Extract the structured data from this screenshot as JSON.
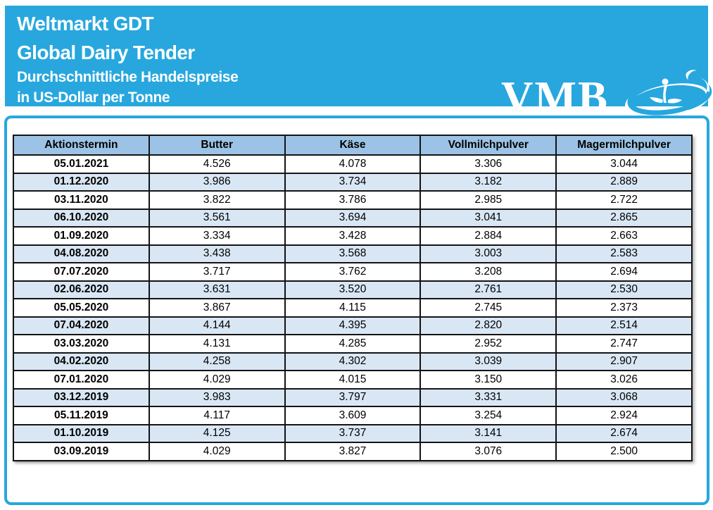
{
  "banner": {
    "background": "#27A7DE",
    "title1": "Weltmarkt GDT",
    "title2": "Global Dairy Tender",
    "subtitle1": "Durchschnittliche Handelspreise",
    "subtitle2": "in US-Dollar per Tonne",
    "logo_text": "VMB"
  },
  "chart_data": {
    "type": "table",
    "title": "Weltmarkt GDT Global Dairy Tender Durchschnittliche Handelspreise in US-Dollar per Tonne",
    "columns": [
      "Aktionstermin",
      "Butter",
      "Käse",
      "Vollmilchpulver",
      "Magermilchpulver"
    ],
    "rows": [
      [
        "05.01.2021",
        "4.526",
        "4.078",
        "3.306",
        "3.044"
      ],
      [
        "01.12.2020",
        "3.986",
        "3.734",
        "3.182",
        "2.889"
      ],
      [
        "03.11.2020",
        "3.822",
        "3.786",
        "2.985",
        "2.722"
      ],
      [
        "06.10.2020",
        "3.561",
        "3.694",
        "3.041",
        "2.865"
      ],
      [
        "01.09.2020",
        "3.334",
        "3.428",
        "2.884",
        "2.663"
      ],
      [
        "04.08.2020",
        "3.438",
        "3.568",
        "3.003",
        "2.583"
      ],
      [
        "07.07.2020",
        "3.717",
        "3.762",
        "3.208",
        "2.694"
      ],
      [
        "02.06.2020",
        "3.631",
        "3.520",
        "2.761",
        "2.530"
      ],
      [
        "05.05.2020",
        "3.867",
        "4.115",
        "2.745",
        "2.373"
      ],
      [
        "07.04.2020",
        "4.144",
        "4.395",
        "2.820",
        "2.514"
      ],
      [
        "03.03.2020",
        "4.131",
        "4.285",
        "2.952",
        "2.747"
      ],
      [
        "04.02.2020",
        "4.258",
        "4.302",
        "3.039",
        "2.907"
      ],
      [
        "07.01.2020",
        "4.029",
        "4.015",
        "3.150",
        "3.026"
      ],
      [
        "03.12.2019",
        "3.983",
        "3.797",
        "3.331",
        "3.068"
      ],
      [
        "05.11.2019",
        "4.117",
        "3.609",
        "3.254",
        "2.924"
      ],
      [
        "01.10.2019",
        "4.125",
        "3.737",
        "3.141",
        "2.674"
      ],
      [
        "03.09.2019",
        "4.029",
        "3.827",
        "3.076",
        "2.500"
      ]
    ],
    "row_striping": [
      "#FFFFFF",
      "#D9E7F5"
    ],
    "header_background": "#9CC3E5",
    "grid": "on",
    "legend_position": "none"
  }
}
